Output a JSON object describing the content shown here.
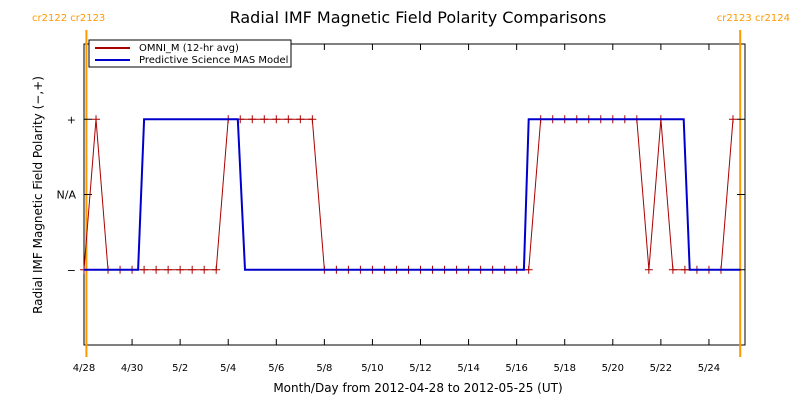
{
  "colors": {
    "omni": "#aa0000",
    "mas": "#0000cc",
    "rotation": "#ff9900",
    "axis": "#000000"
  },
  "chart_data": {
    "type": "line",
    "title": "Radial IMF Magnetic Field Polarity Comparisons",
    "xlabel": "Month/Day from 2012-04-28 to 2012-05-25 (UT)",
    "ylabel": "Radial IMF Magnetic Field Polarity (−,+)",
    "xlim_days_after_apr28": [
      0,
      27.5
    ],
    "ylim": [
      -2,
      2
    ],
    "y_ticks": [
      {
        "value": 1,
        "label": "+"
      },
      {
        "value": 0,
        "label": "N/A"
      },
      {
        "value": -1,
        "label": "−"
      }
    ],
    "x_ticks": [
      {
        "day": 0,
        "label": "4/28"
      },
      {
        "day": 2,
        "label": "4/30"
      },
      {
        "day": 4,
        "label": "5/2"
      },
      {
        "day": 6,
        "label": "5/4"
      },
      {
        "day": 8,
        "label": "5/6"
      },
      {
        "day": 10,
        "label": "5/8"
      },
      {
        "day": 12,
        "label": "5/10"
      },
      {
        "day": 14,
        "label": "5/12"
      },
      {
        "day": 16,
        "label": "5/14"
      },
      {
        "day": 18,
        "label": "5/16"
      },
      {
        "day": 20,
        "label": "5/18"
      },
      {
        "day": 22,
        "label": "5/20"
      },
      {
        "day": 24,
        "label": "5/22"
      },
      {
        "day": 26,
        "label": "5/24"
      }
    ],
    "grid": false,
    "legend": "top-left",
    "series": [
      {
        "name": "OMNI_M (12-hr avg)",
        "color": "#aa0000",
        "marker": "+",
        "points": [
          {
            "day": 0.0,
            "y": -1
          },
          {
            "day": 0.5,
            "y": 1
          },
          {
            "day": 1.0,
            "y": -1
          },
          {
            "day": 1.5,
            "y": -1
          },
          {
            "day": 2.0,
            "y": -1
          },
          {
            "day": 2.5,
            "y": -1
          },
          {
            "day": 3.0,
            "y": -1
          },
          {
            "day": 3.5,
            "y": -1
          },
          {
            "day": 4.0,
            "y": -1
          },
          {
            "day": 4.5,
            "y": -1
          },
          {
            "day": 5.0,
            "y": -1
          },
          {
            "day": 5.5,
            "y": -1
          },
          {
            "day": 6.0,
            "y": 1
          },
          {
            "day": 6.5,
            "y": 1
          },
          {
            "day": 7.0,
            "y": 1
          },
          {
            "day": 7.5,
            "y": 1
          },
          {
            "day": 8.0,
            "y": 1
          },
          {
            "day": 8.5,
            "y": 1
          },
          {
            "day": 9.0,
            "y": 1
          },
          {
            "day": 9.5,
            "y": 1
          },
          {
            "day": 10.0,
            "y": -1
          },
          {
            "day": 10.5,
            "y": -1
          },
          {
            "day": 11.0,
            "y": -1
          },
          {
            "day": 11.5,
            "y": -1
          },
          {
            "day": 12.0,
            "y": -1
          },
          {
            "day": 12.5,
            "y": -1
          },
          {
            "day": 13.0,
            "y": -1
          },
          {
            "day": 13.5,
            "y": -1
          },
          {
            "day": 14.0,
            "y": -1
          },
          {
            "day": 14.5,
            "y": -1
          },
          {
            "day": 15.0,
            "y": -1
          },
          {
            "day": 15.5,
            "y": -1
          },
          {
            "day": 16.0,
            "y": -1
          },
          {
            "day": 16.5,
            "y": -1
          },
          {
            "day": 17.0,
            "y": -1
          },
          {
            "day": 17.5,
            "y": -1
          },
          {
            "day": 18.0,
            "y": -1
          },
          {
            "day": 18.5,
            "y": -1
          },
          {
            "day": 19.0,
            "y": 1
          },
          {
            "day": 19.5,
            "y": 1
          },
          {
            "day": 20.0,
            "y": 1
          },
          {
            "day": 20.5,
            "y": 1
          },
          {
            "day": 21.0,
            "y": 1
          },
          {
            "day": 21.5,
            "y": 1
          },
          {
            "day": 22.0,
            "y": 1
          },
          {
            "day": 22.5,
            "y": 1
          },
          {
            "day": 23.0,
            "y": 1
          },
          {
            "day": 23.5,
            "y": -1
          },
          {
            "day": 24.0,
            "y": 1
          },
          {
            "day": 24.5,
            "y": -1
          },
          {
            "day": 25.0,
            "y": -1
          },
          {
            "day": 25.5,
            "y": -1
          },
          {
            "day": 26.0,
            "y": -1
          },
          {
            "day": 26.5,
            "y": -1
          },
          {
            "day": 27.0,
            "y": 1
          }
        ]
      },
      {
        "name": "Predictive Science MAS Model",
        "color": "#0000cc",
        "points": [
          {
            "day": 0.0,
            "y": -1
          },
          {
            "day": 2.25,
            "y": -1
          },
          {
            "day": 2.5,
            "y": 1
          },
          {
            "day": 6.4,
            "y": 1
          },
          {
            "day": 6.7,
            "y": -1
          },
          {
            "day": 18.3,
            "y": -1
          },
          {
            "day": 18.5,
            "y": 1
          },
          {
            "day": 24.95,
            "y": 1
          },
          {
            "day": 25.2,
            "y": -1
          },
          {
            "day": 27.3,
            "y": -1
          }
        ]
      }
    ],
    "rotation_markers": [
      {
        "day": 0.1,
        "label": "cr2122 cr2123",
        "side": "left"
      },
      {
        "day": 27.3,
        "label": "cr2123 cr2124",
        "side": "right"
      }
    ]
  }
}
